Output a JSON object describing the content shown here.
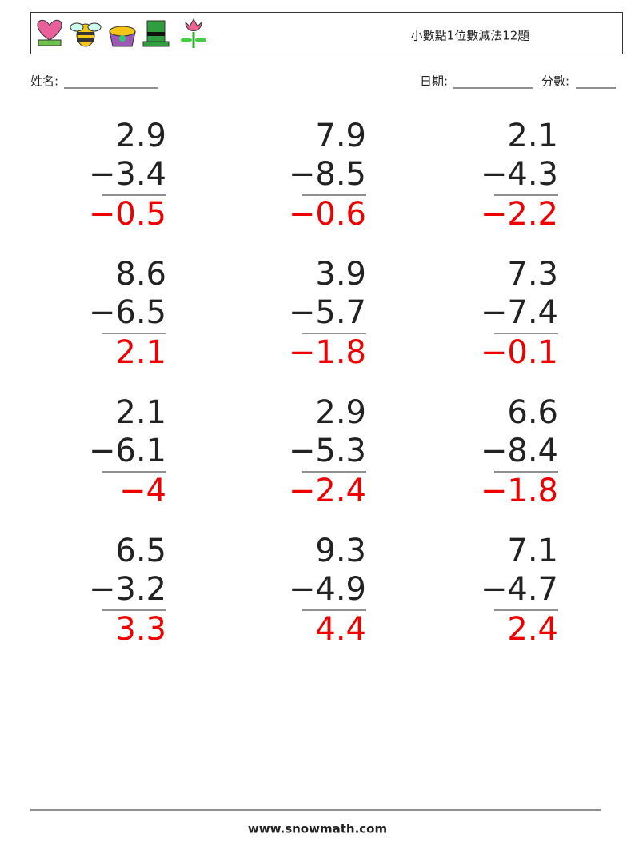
{
  "header": {
    "title": "小數點1位數減法12題"
  },
  "fields": {
    "name": "姓名:",
    "date": "日期:",
    "score": "分數:"
  },
  "problems": [
    {
      "top": "2.9",
      "bottom": "−3.4",
      "answer": "−0.5"
    },
    {
      "top": "7.9",
      "bottom": "−8.5",
      "answer": "−0.6"
    },
    {
      "top": "2.1",
      "bottom": "−4.3",
      "answer": "−2.2"
    },
    {
      "top": "8.6",
      "bottom": "−6.5",
      "answer": "2.1"
    },
    {
      "top": "3.9",
      "bottom": "−5.7",
      "answer": "−1.8"
    },
    {
      "top": "7.3",
      "bottom": "−7.4",
      "answer": "−0.1"
    },
    {
      "top": "2.1",
      "bottom": "−6.1",
      "answer": "−4"
    },
    {
      "top": "2.9",
      "bottom": "−5.3",
      "answer": "−2.4"
    },
    {
      "top": "6.6",
      "bottom": "−8.4",
      "answer": "−1.8"
    },
    {
      "top": "6.5",
      "bottom": "−3.2",
      "answer": "3.3"
    },
    {
      "top": "9.3",
      "bottom": "−4.9",
      "answer": "4.4"
    },
    {
      "top": "7.1",
      "bottom": "−4.7",
      "answer": "2.4"
    }
  ],
  "footer": "www.snowmath.com"
}
